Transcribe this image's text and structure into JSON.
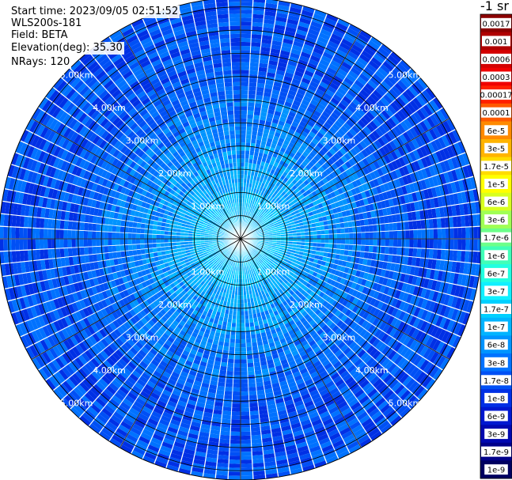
{
  "header": {
    "start_time": "Start time: 2023/09/05 02:51:52",
    "instrument": "WLS200s-181",
    "field": "Field: BETA",
    "elevation": "Elevation(deg): 35.30",
    "nrays": "NRays: 120"
  },
  "chart_data": {
    "type": "heatmap",
    "projection": "polar-ppi",
    "title": "",
    "nrays": 120,
    "max_range_km": 5.2,
    "range_ring_labels": [
      {
        "range_km": 1.0,
        "label": "1.00km"
      },
      {
        "range_km": 2.0,
        "label": "2.00km"
      },
      {
        "range_km": 3.0,
        "label": "3.00km"
      },
      {
        "range_km": 4.0,
        "label": "4.00km"
      },
      {
        "range_km": 5.0,
        "label": "5.00km"
      }
    ],
    "grid_rings_km": [
      0.5,
      1.0,
      1.5,
      2.0,
      2.5,
      3.0,
      3.5,
      4.0,
      4.5,
      5.0
    ],
    "grid_spokes_deg": [
      0,
      30,
      60,
      90,
      120,
      150,
      180,
      210,
      240,
      270,
      300,
      330
    ],
    "range_profile": {
      "range_km": [
        0.0,
        0.5,
        1.0,
        1.5,
        2.0,
        2.5,
        3.0,
        3.5,
        4.0,
        4.5,
        5.0,
        5.2
      ],
      "value_range": [
        [
          "1.7e-7",
          "1e-7"
        ],
        [
          "1.7e-7",
          "1e-7"
        ],
        [
          "1e-7",
          "6e-8"
        ],
        [
          "1e-7",
          "3e-8"
        ],
        [
          "6e-8",
          "3e-8"
        ],
        [
          "6e-8",
          "1.7e-8"
        ],
        [
          "3e-8",
          "1.7e-8"
        ],
        [
          "3e-8",
          "1e-8"
        ],
        [
          "3e-8",
          "1e-8"
        ],
        [
          "3e-8",
          "1e-8"
        ],
        [
          "3e-8",
          "1e-8"
        ],
        [
          "3e-8",
          "1e-8"
        ]
      ]
    },
    "colorbar": {
      "title": "-1 sr",
      "ticks": [
        {
          "label": "0.0017",
          "color": "#8b0000"
        },
        {
          "label": "0.001",
          "color": "#b00000"
        },
        {
          "label": "0.0006",
          "color": "#d40000"
        },
        {
          "label": "0.0003",
          "color": "#f00000"
        },
        {
          "label": "0.00017",
          "color": "#ff2000"
        },
        {
          "label": "0.0001",
          "color": "#ff5a00"
        },
        {
          "label": "6e-5",
          "color": "#ff8a00"
        },
        {
          "label": "3e-5",
          "color": "#ffb400"
        },
        {
          "label": "1.7e-5",
          "color": "#ffdc00"
        },
        {
          "label": "1e-5",
          "color": "#ffff00"
        },
        {
          "label": "6e-6",
          "color": "#d8ff20"
        },
        {
          "label": "3e-6",
          "color": "#a0ff55"
        },
        {
          "label": "1.7e-6",
          "color": "#6cff8a"
        },
        {
          "label": "1e-6",
          "color": "#40ffb8"
        },
        {
          "label": "6e-7",
          "color": "#22ffe0"
        },
        {
          "label": "3e-7",
          "color": "#10f0ff"
        },
        {
          "label": "1.7e-7",
          "color": "#00d0ff"
        },
        {
          "label": "1e-7",
          "color": "#00b4ff"
        },
        {
          "label": "6e-8",
          "color": "#0094ff"
        },
        {
          "label": "3e-8",
          "color": "#0072ff"
        },
        {
          "label": "1.7e-8",
          "color": "#0050f5"
        },
        {
          "label": "1e-8",
          "color": "#0030e5"
        },
        {
          "label": "6e-9",
          "color": "#0018d0"
        },
        {
          "label": "3e-9",
          "color": "#0008b0"
        },
        {
          "label": "1.7e-9",
          "color": "#00008a"
        },
        {
          "label": "1e-9",
          "color": "#000060"
        }
      ]
    }
  }
}
